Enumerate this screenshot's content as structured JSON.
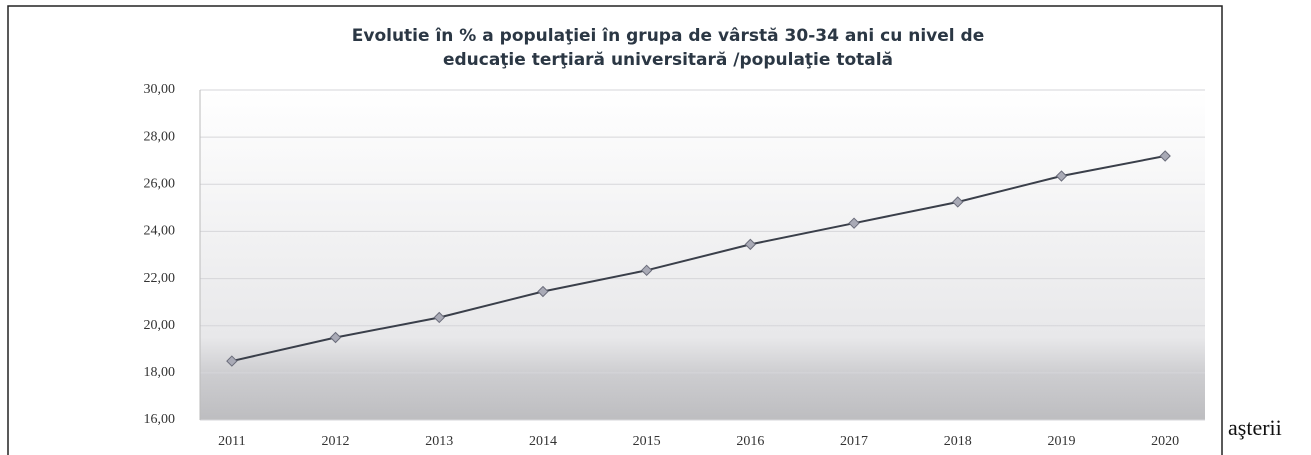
{
  "chart_data": {
    "type": "line",
    "title": [
      "Evolutie în % a populaţiei în grupa de vârstă  30-34 ani cu nivel de",
      "educaţie terţiară universitară /populaţie totală"
    ],
    "categories": [
      "2011",
      "2012",
      "2013",
      "2014",
      "2015",
      "2016",
      "2017",
      "2018",
      "2019",
      "2020"
    ],
    "series": [
      {
        "color": "#3a3f4a",
        "values": [
          18.5,
          19.5,
          20.35,
          21.45,
          22.35,
          23.45,
          24.35,
          25.25,
          26.35,
          27.2
        ]
      }
    ],
    "ylim": [
      16,
      30
    ],
    "yticks": [
      {
        "value": 16,
        "label": "16,00"
      },
      {
        "value": 18,
        "label": "18,00"
      },
      {
        "value": 20,
        "label": "20,00"
      },
      {
        "value": 22,
        "label": "22,00"
      },
      {
        "value": 24,
        "label": "24,00"
      },
      {
        "value": 26,
        "label": "26,00"
      },
      {
        "value": 28,
        "label": "28,00"
      },
      {
        "value": 30,
        "label": "30,00"
      }
    ],
    "grid": true
  },
  "fragment": "aşterii"
}
